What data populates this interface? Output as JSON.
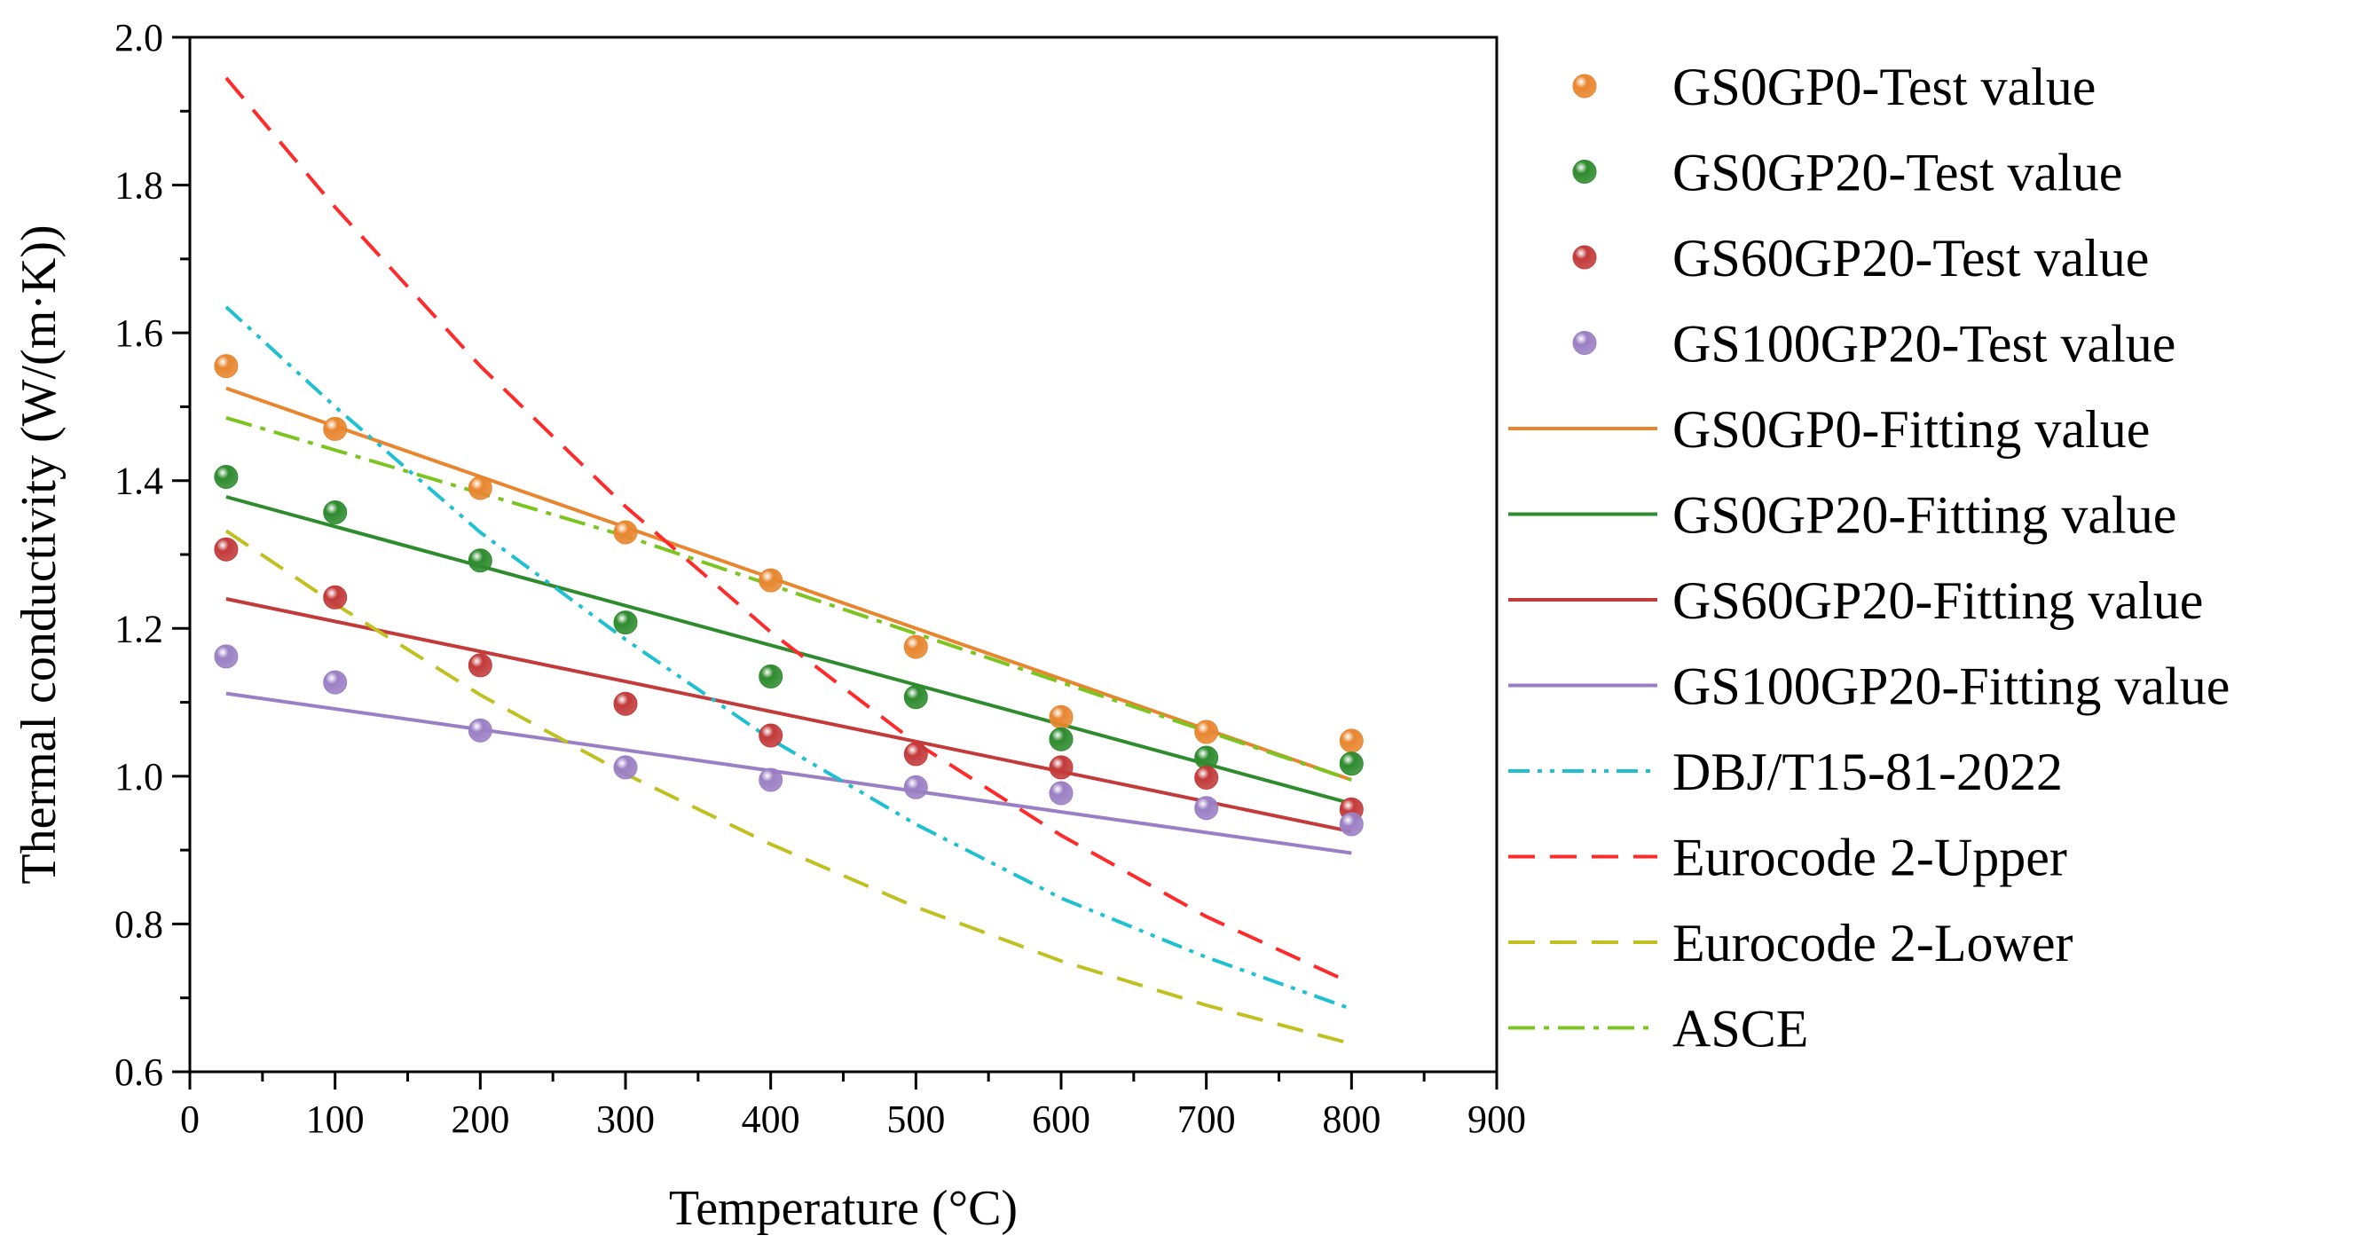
{
  "chart_data": {
    "type": "line",
    "xlabel": "Temperature (°C)",
    "ylabel": "Thermal conductivity (W/(m·K))",
    "xlim": [
      0,
      900
    ],
    "ylim": [
      0.6,
      2.0
    ],
    "x_ticks": [
      0,
      100,
      200,
      300,
      400,
      500,
      600,
      700,
      800,
      900
    ],
    "x_tick_labels": [
      "0",
      "100",
      "200",
      "300",
      "400",
      "500",
      "600",
      "700",
      "800",
      "900"
    ],
    "y_ticks": [
      0.6,
      0.8,
      1.0,
      1.2,
      1.4,
      1.6,
      1.8,
      2.0
    ],
    "y_tick_labels": [
      "0.6",
      "0.8",
      "1.0",
      "1.2",
      "1.4",
      "1.6",
      "1.8",
      "2.0"
    ],
    "grid": false,
    "legend_position": "right",
    "x": [
      25,
      100,
      200,
      300,
      400,
      500,
      600,
      700,
      800
    ],
    "series": [
      {
        "name": "GS0GP0-Test value",
        "kind": "scatter",
        "color": "#e8862f",
        "values": [
          1.555,
          1.47,
          1.39,
          1.33,
          1.265,
          1.175,
          1.08,
          1.06,
          1.048
        ]
      },
      {
        "name": "GS0GP20-Test value",
        "kind": "scatter",
        "color": "#2e8b2e",
        "values": [
          1.405,
          1.357,
          1.292,
          1.208,
          1.135,
          1.107,
          1.05,
          1.025,
          1.017
        ]
      },
      {
        "name": "GS60GP20-Test value",
        "kind": "scatter",
        "color": "#c23a3a",
        "values": [
          1.307,
          1.242,
          1.15,
          1.098,
          1.055,
          1.03,
          1.012,
          0.998,
          0.955
        ]
      },
      {
        "name": "GS100GP20-Test value",
        "kind": "scatter",
        "color": "#9b7fc4",
        "values": [
          1.162,
          1.127,
          1.062,
          1.012,
          0.995,
          0.985,
          0.977,
          0.957,
          0.935
        ]
      },
      {
        "name": "GS0GP0-Fitting value",
        "kind": "line",
        "dash": "solid",
        "color": "#e8862f",
        "x": [
          25,
          800
        ],
        "values": [
          1.525,
          0.995
        ]
      },
      {
        "name": "GS0GP20-Fitting value",
        "kind": "line",
        "dash": "solid",
        "color": "#2e8b2e",
        "x": [
          25,
          800
        ],
        "values": [
          1.378,
          0.963
        ]
      },
      {
        "name": "GS60GP20-Fitting value",
        "kind": "line",
        "dash": "solid",
        "color": "#c23a3a",
        "x": [
          25,
          800
        ],
        "values": [
          1.24,
          0.925
        ]
      },
      {
        "name": "GS100GP20-Fitting value",
        "kind": "line",
        "dash": "solid",
        "color": "#9b7fc4",
        "x": [
          25,
          800
        ],
        "values": [
          1.112,
          0.896
        ]
      },
      {
        "name": "DBJ/T15-81-2022",
        "kind": "line",
        "dash": "dashdotdot",
        "color": "#1fc0d0",
        "x": [
          25,
          100,
          200,
          300,
          400,
          500,
          600,
          700,
          800
        ],
        "values": [
          1.635,
          1.5,
          1.33,
          1.185,
          1.05,
          0.935,
          0.835,
          0.755,
          0.685
        ]
      },
      {
        "name": "Eurocode 2-Upper",
        "kind": "line",
        "dash": "dash",
        "color": "#ff2a2a",
        "x": [
          25,
          100,
          200,
          300,
          400,
          500,
          600,
          700,
          800
        ],
        "values": [
          1.945,
          1.77,
          1.555,
          1.365,
          1.195,
          1.045,
          0.92,
          0.81,
          0.72
        ]
      },
      {
        "name": "Eurocode 2-Lower",
        "kind": "line",
        "dash": "dash",
        "color": "#c0c020",
        "x": [
          25,
          100,
          200,
          300,
          400,
          500,
          600,
          700,
          800
        ],
        "values": [
          1.332,
          1.233,
          1.11,
          1.003,
          0.908,
          0.823,
          0.75,
          0.69,
          0.638
        ]
      },
      {
        "name": "ASCE",
        "kind": "line",
        "dash": "dashdot",
        "color": "#7cc41f",
        "x": [
          25,
          300,
          800
        ],
        "values": [
          1.485,
          1.325,
          0.995
        ]
      }
    ]
  }
}
